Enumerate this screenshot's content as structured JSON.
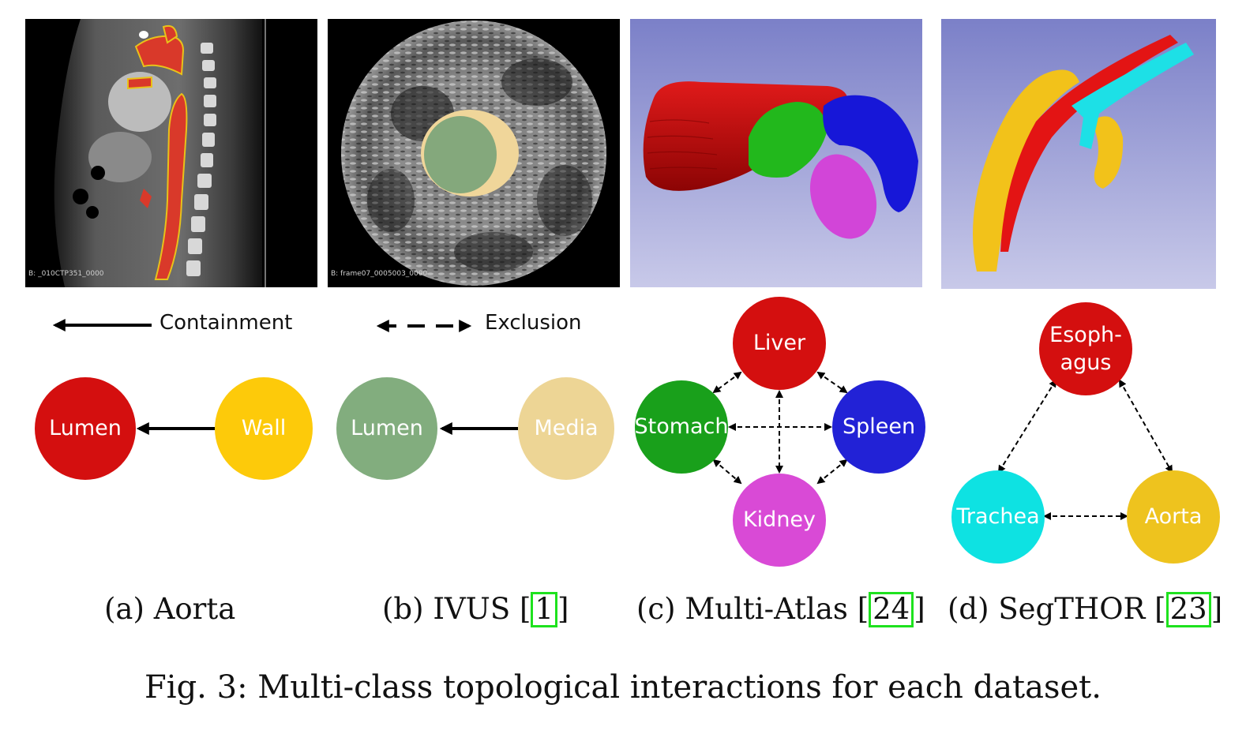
{
  "panels": {
    "a": {
      "overlay_text": "B: _010CTP351_0000",
      "caption_prefix": "(a) Aorta",
      "cite": ""
    },
    "b": {
      "overlay_text": "B: frame07_0005003_0000",
      "caption_prefix": "(b) IVUS ",
      "cite": "1"
    },
    "c": {
      "caption_prefix": "(c) Multi-Atlas ",
      "cite": "24"
    },
    "d": {
      "caption_prefix": "(d) SegTHOR ",
      "cite": "23"
    }
  },
  "legend": {
    "containment": "Containment",
    "exclusion": "Exclusion"
  },
  "nodes": {
    "a_lumen": "Lumen",
    "a_wall": "Wall",
    "b_lumen": "Lumen",
    "b_media": "Media",
    "c_liver": "Liver",
    "c_stomach": "Stomach",
    "c_spleen": "Spleen",
    "c_kidney": "Kidney",
    "d_esophagus_1": "Esoph-",
    "d_esophagus_2": "agus",
    "d_trachea": "Trachea",
    "d_aorta": "Aorta"
  },
  "colors": {
    "red": "#d40f0f",
    "yellow": "#fdca0a",
    "green_sage": "#82ad7e",
    "tan": "#edd595",
    "green": "#19a01b",
    "blue": "#2222d6",
    "magenta": "#d94ad6",
    "cyan": "#0ee2e2",
    "gold": "#eec31e",
    "cite_box": "#1ee21e"
  },
  "figure_caption": "Fig. 3: Multi-class topological interactions for each dataset."
}
